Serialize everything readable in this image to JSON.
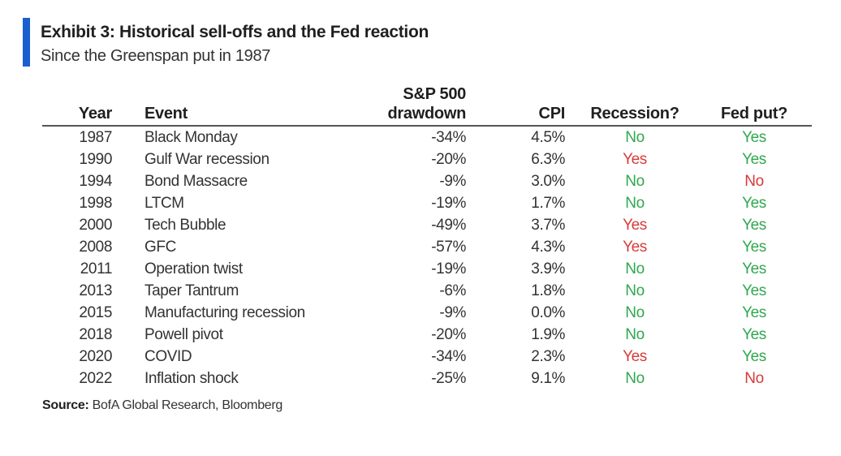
{
  "header": {
    "title": "Exhibit 3: Historical sell-offs and the Fed reaction",
    "subtitle": "Since the Greenspan put in 1987",
    "accent_color": "#1a5fd0"
  },
  "chart_data": {
    "type": "table",
    "title": "Exhibit 3: Historical sell-offs and the Fed reaction",
    "subtitle": "Since the Greenspan put in 1987",
    "columns": {
      "year": "Year",
      "event": "Event",
      "drawdown_line1": "S&P 500",
      "drawdown_line2": "drawdown",
      "cpi": "CPI",
      "recession": "Recession?",
      "fed_put": "Fed put?"
    },
    "rows": [
      {
        "year": "1987",
        "event": "Black Monday",
        "drawdown": "-34%",
        "cpi": "4.5%",
        "recession": "No",
        "fed_put": "Yes"
      },
      {
        "year": "1990",
        "event": "Gulf War recession",
        "drawdown": "-20%",
        "cpi": "6.3%",
        "recession": "Yes",
        "fed_put": "Yes"
      },
      {
        "year": "1994",
        "event": "Bond Massacre",
        "drawdown": "-9%",
        "cpi": "3.0%",
        "recession": "No",
        "fed_put": "No"
      },
      {
        "year": "1998",
        "event": "LTCM",
        "drawdown": "-19%",
        "cpi": "1.7%",
        "recession": "No",
        "fed_put": "Yes"
      },
      {
        "year": "2000",
        "event": "Tech Bubble",
        "drawdown": "-49%",
        "cpi": "3.7%",
        "recession": "Yes",
        "fed_put": "Yes"
      },
      {
        "year": "2008",
        "event": "GFC",
        "drawdown": "-57%",
        "cpi": "4.3%",
        "recession": "Yes",
        "fed_put": "Yes"
      },
      {
        "year": "2011",
        "event": "Operation twist",
        "drawdown": "-19%",
        "cpi": "3.9%",
        "recession": "No",
        "fed_put": "Yes"
      },
      {
        "year": "2013",
        "event": "Taper Tantrum",
        "drawdown": "-6%",
        "cpi": "1.8%",
        "recession": "No",
        "fed_put": "Yes"
      },
      {
        "year": "2015",
        "event": "Manufacturing recession",
        "drawdown": "-9%",
        "cpi": "0.0%",
        "recession": "No",
        "fed_put": "Yes"
      },
      {
        "year": "2018",
        "event": "Powell pivot",
        "drawdown": "-20%",
        "cpi": "1.9%",
        "recession": "No",
        "fed_put": "Yes"
      },
      {
        "year": "2020",
        "event": "COVID",
        "drawdown": "-34%",
        "cpi": "2.3%",
        "recession": "Yes",
        "fed_put": "Yes"
      },
      {
        "year": "2022",
        "event": "Inflation shock",
        "drawdown": "-25%",
        "cpi": "9.1%",
        "recession": "No",
        "fed_put": "No"
      }
    ],
    "colors": {
      "positive": "#2fa84f",
      "negative": "#d83a3a"
    }
  },
  "footer": {
    "source_label": "Source:",
    "source_text": " BofA Global Research, Bloomberg"
  }
}
